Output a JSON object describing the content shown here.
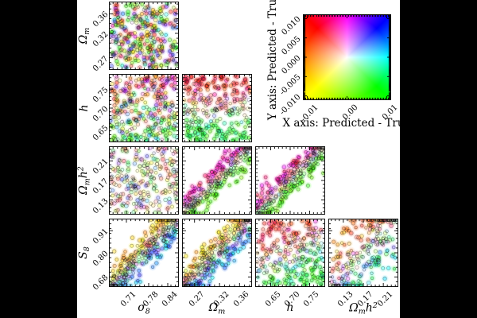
{
  "figure": {
    "background": "#000000",
    "plot_area_background": "#ffffff",
    "description": "Corner plot (lower-triangle scatter matrix) of cosmological parameters; each point colored by a 2D error colormap (Predicted - True on x and y)."
  },
  "legend": {
    "x_label": "X axis: Predicted - True",
    "y_label": "Y axis: Predicted - True",
    "x_tick_labels": [
      "-0.01",
      "0.00",
      "0.01"
    ],
    "x_tick_values": [
      -0.01,
      0.0,
      0.01
    ],
    "y_tick_labels": [
      "0.010",
      "0.005",
      "0.000",
      "-0.005",
      "-0.010"
    ],
    "y_tick_values": [
      0.01,
      0.005,
      0.0,
      -0.005,
      -0.01
    ],
    "range": [
      -0.0111,
      0.0111
    ],
    "corner_colors": {
      "top_left": "#ff0000",
      "top_right": "#0000ff",
      "bottom_left": "#ffff00",
      "bottom_right": "#00ff00",
      "center": "#ffffff",
      "mid_left": "#ff7f00",
      "mid_right": "#00ffcc",
      "mid_top": "#b000ff",
      "mid_bottom": "#80ff00"
    }
  },
  "chart_data": {
    "type": "scatter",
    "subtype": "corner-plot",
    "title": "",
    "color_encoding": "hue = direction of (x error, y error); saturation = error magnitude; white = zero error",
    "parameters": [
      {
        "id": "sigma_8",
        "label": "σ_8",
        "ticks": [
          "0.71",
          "0.78",
          "0.84"
        ],
        "tick_values": [
          0.71,
          0.78,
          0.84
        ],
        "range": [
          0.655,
          0.875
        ]
      },
      {
        "id": "Omega_m",
        "label": "Ω_m",
        "ticks": [
          "0.27",
          "0.32",
          "0.36"
        ],
        "tick_values": [
          0.27,
          0.32,
          0.36
        ],
        "range": [
          0.245,
          0.385
        ]
      },
      {
        "id": "h",
        "label": "h",
        "ticks": [
          "0.65",
          "0.70",
          "0.75"
        ],
        "tick_values": [
          0.65,
          0.7,
          0.75
        ],
        "range": [
          0.61,
          0.79
        ]
      },
      {
        "id": "Omega_m_h2",
        "label": "Ω_mh^2",
        "ticks": [
          "0.13",
          "0.17",
          "0.21"
        ],
        "tick_values": [
          0.13,
          0.17,
          0.21
        ],
        "range": [
          0.1,
          0.24
        ]
      },
      {
        "id": "S_8",
        "label": "S_8",
        "ticks": [
          "0.68",
          "0.80",
          "0.91"
        ],
        "tick_values": [
          0.68,
          0.8,
          0.91
        ],
        "range": [
          0.63,
          0.97
        ]
      }
    ],
    "rows": [
      "Omega_m",
      "h",
      "Omega_m_h2",
      "S_8"
    ],
    "cols": [
      "sigma_8",
      "Omega_m",
      "h",
      "Omega_m_h2"
    ],
    "panels": [
      {
        "row": "Omega_m",
        "col": "sigma_8",
        "dist": "uniform",
        "n": 300,
        "seed": 101,
        "rule": {
          "nx": 1.25,
          "ny": 1.25
        }
      },
      {
        "row": "h",
        "col": "sigma_8",
        "dist": "uniform",
        "n": 300,
        "seed": 102,
        "rule": {
          "bx": -0.55,
          "by": 0.55,
          "nx": 0.85,
          "ny": 0.85
        }
      },
      {
        "row": "h",
        "col": "Omega_m",
        "dist": "uniform",
        "n": 300,
        "seed": 103,
        "rule": {
          "bx": -1.0,
          "by": 1.0,
          "nx": 0.5,
          "ny": 0.5
        }
      },
      {
        "row": "Omega_m_h2",
        "col": "sigma_8",
        "dist": "uniform",
        "n": 250,
        "seed": 104,
        "rule": {
          "nx": 0.9,
          "ny": 0.9,
          "sat": 0.6
        }
      },
      {
        "row": "Omega_m_h2",
        "col": "Omega_m",
        "dist": "band",
        "sigma": 0.13,
        "n": 300,
        "seed": 105,
        "rule": {
          "ox": -0.25,
          "oy": 0.9,
          "nx": 0.4,
          "ny": 0.4
        }
      },
      {
        "row": "Omega_m_h2",
        "col": "h",
        "dist": "band",
        "sigma": 0.13,
        "n": 300,
        "seed": 106,
        "rule": {
          "ox": -0.3,
          "oy": 0.85,
          "nx": 0.45,
          "ny": 0.45
        }
      },
      {
        "row": "S_8",
        "col": "sigma_8",
        "dist": "band",
        "sigma": 0.16,
        "n": 320,
        "seed": 107,
        "rule": {
          "ox": -0.85,
          "oy": -0.35,
          "nx": 0.45,
          "ny": 0.55
        }
      },
      {
        "row": "S_8",
        "col": "Omega_m",
        "dist": "band",
        "sigma": 0.16,
        "n": 320,
        "seed": 108,
        "rule": {
          "ox": -0.85,
          "oy": -0.35,
          "nx": 0.45,
          "ny": 0.55
        }
      },
      {
        "row": "S_8",
        "col": "h",
        "dist": "uniform",
        "n": 280,
        "seed": 109,
        "rule": {
          "ax": 0.35,
          "bx": -0.85,
          "ay": -0.3,
          "by": 0.7,
          "nx": 0.5,
          "ny": 0.5
        }
      },
      {
        "row": "S_8",
        "col": "Omega_m_h2",
        "dist": "band",
        "sigma": 0.34,
        "n": 280,
        "seed": 110,
        "rule": {
          "ox": -0.8,
          "oy": 0.1,
          "nx": 0.4,
          "ny": 0.55
        }
      }
    ]
  }
}
